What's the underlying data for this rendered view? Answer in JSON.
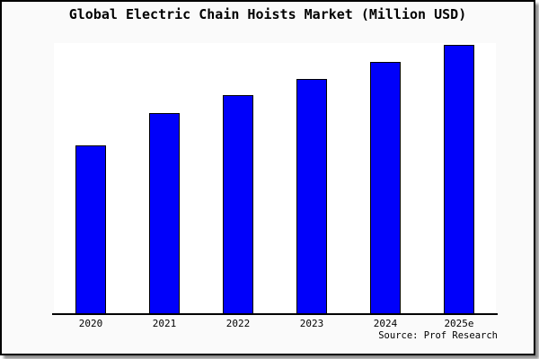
{
  "card": {
    "title": "Global Electric Chain Hoists Market (Million USD)",
    "source": "Source: Prof Research"
  },
  "colors": {
    "bar_fill": "#0000fa",
    "bar_border": "#000000",
    "card_background": "#fafafa",
    "plot_background": "#ffffff",
    "axis_line": "#000000",
    "card_border": "#000000",
    "text": "#000000"
  },
  "chart_data": {
    "type": "bar",
    "title": "Global Electric Chain Hoists Market (Million USD)",
    "categories": [
      "2020",
      "2021",
      "2022",
      "2023",
      "2024",
      "2025e"
    ],
    "values": [
      188,
      224,
      244,
      262,
      281,
      300
    ],
    "values_unit": "relative bar height in px (no numeric y-axis scale shown in chart)",
    "values_pct_of_2025e": [
      62.7,
      74.8,
      81.3,
      87.5,
      93.7,
      100
    ],
    "xlabel": "",
    "ylabel": "",
    "y_axis_ticks": "none",
    "grid": false,
    "legend": false,
    "source_label": "Source: Prof Research",
    "bar_color": "#0000fa"
  }
}
